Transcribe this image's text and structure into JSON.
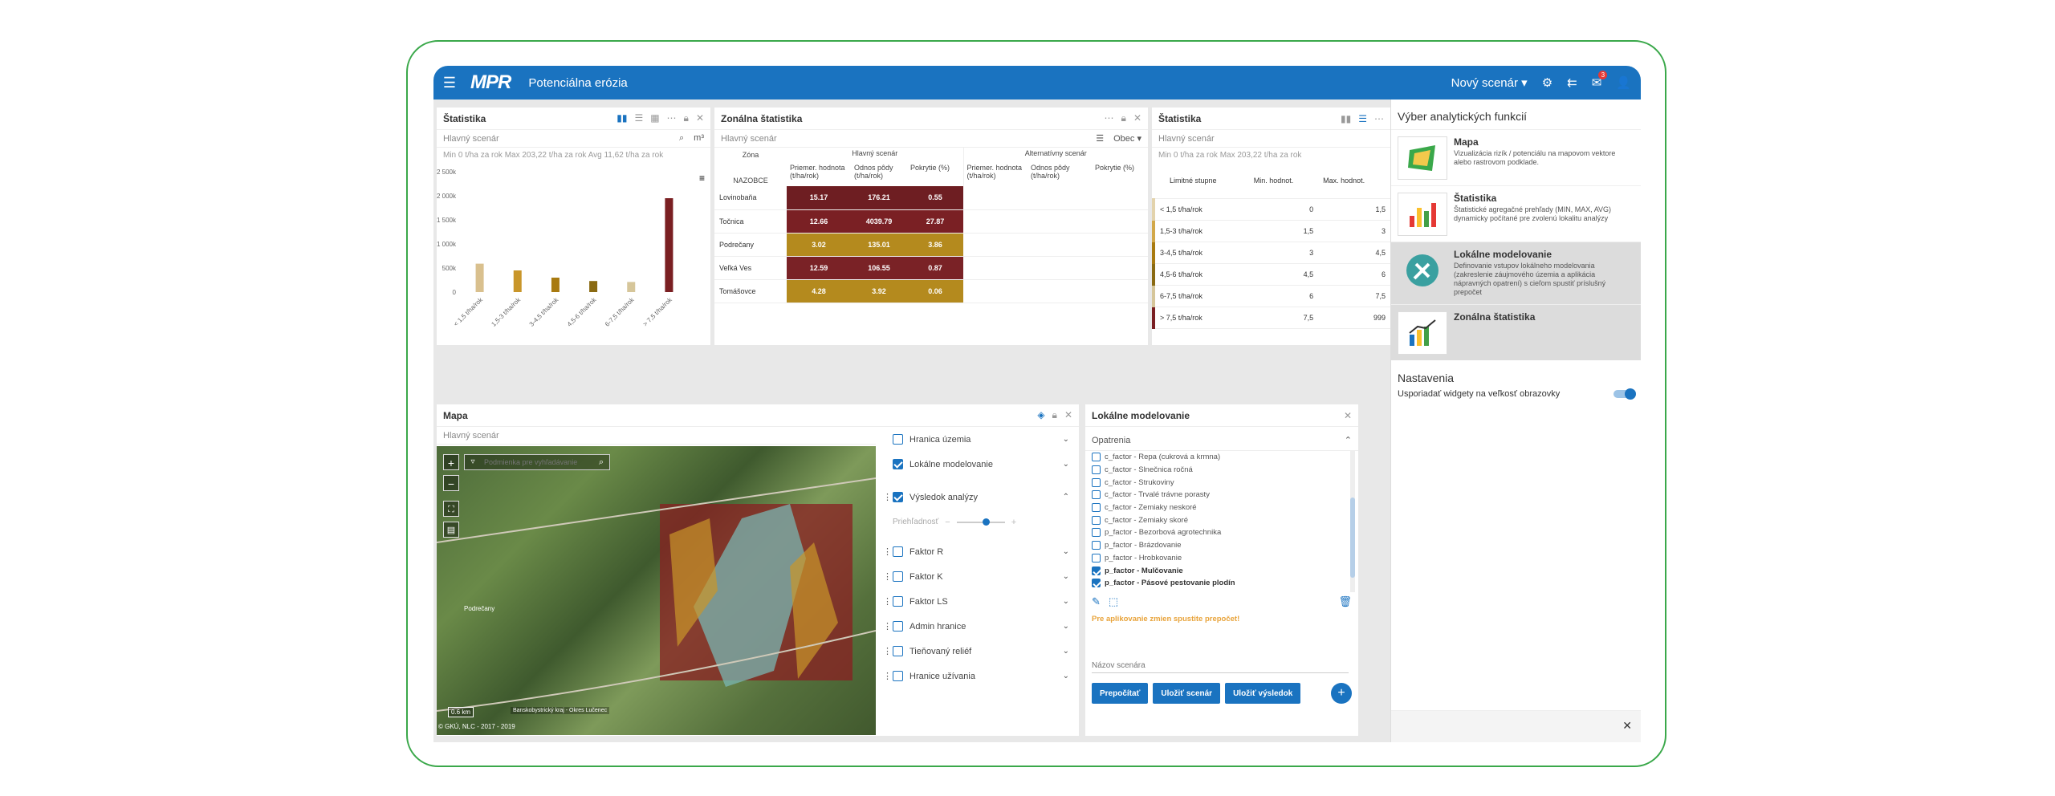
{
  "app": {
    "title": "Potenciálna erózia",
    "logo": "MPR",
    "scenario_menu": "Nový scenár",
    "notifications": "3"
  },
  "icons": {
    "burger": "menu-icon",
    "gear": "gear-icon",
    "exit": "exit-icon",
    "mail": "mail-icon",
    "user": "user-icon"
  },
  "stat": {
    "title": "Štatistika",
    "scenario": "Hlavný scenár",
    "unit": "m³",
    "minmax": "Min 0 t/ha za rok   Max 203,22 t/ha za rok   Avg 11,62 t/ha za rok"
  },
  "chart_data": {
    "type": "bar",
    "title": "Štatistika",
    "categories": [
      "< 1,5 t/ha/rok",
      "1,5-3 t/ha/rok",
      "3-4,5 t/ha/rok",
      "4,5-6 t/ha/rok",
      "6-7,5 t/ha/rok",
      "> 7,5 t/ha/rok"
    ],
    "values": [
      590000,
      450000,
      300000,
      230000,
      210000,
      1950000
    ],
    "colors": [
      "#d9c08e",
      "#c9962a",
      "#a87a10",
      "#8a6a12",
      "#d6c69a",
      "#7a1f22"
    ],
    "ylim": [
      0,
      2500000
    ],
    "yticks": [
      "0",
      "500k",
      "1 000k",
      "1 500k",
      "2 000k",
      "2 500k"
    ],
    "tick_values": [
      0,
      500000,
      1000000,
      1500000,
      2000000,
      2500000
    ]
  },
  "zonal": {
    "title": "Zonálna štatistika",
    "scenario": "Hlavný scenár",
    "obec": "Obec",
    "col_zona": "Zóna",
    "col_nazobce": "NAZOBCE",
    "main": "Hlavný scenár",
    "alt": "Alternatívny scenár",
    "h1": "Priemer. hodnota (t/ha/rok)",
    "h2": "Odnos pôdy (t/ha/rok)",
    "h3": "Pokrytie (%)",
    "rows": [
      {
        "name": "Lovinobaňa",
        "a": "15.17",
        "b": "176.21",
        "c": "0.55",
        "color": "#6e1e22"
      },
      {
        "name": "Točnica",
        "a": "12.66",
        "b": "4039.79",
        "c": "27.87",
        "color": "#7a2024"
      },
      {
        "name": "Podrečany",
        "a": "3.02",
        "b": "135.01",
        "c": "3.86",
        "color": "#b48a1e"
      },
      {
        "name": "Veľká Ves",
        "a": "12.59",
        "b": "106.55",
        "c": "0.87",
        "color": "#7a2226"
      },
      {
        "name": "Tomášovce",
        "a": "4.28",
        "b": "3.92",
        "c": "0.06",
        "color": "#b48a1e"
      }
    ]
  },
  "stat2": {
    "title": "Štatistika",
    "scenario": "Hlavný scenár",
    "minmax": "Min 0 t/ha za rok   Max 203,22 t/ha za rok",
    "h1": "Limitné stupne",
    "h2": "Min. hodnot.",
    "h3": "Max. hodnot.",
    "rows": [
      {
        "label": "< 1,5 t/ha/rok",
        "min": "0",
        "max": "1,5",
        "color": "#e3d3ac"
      },
      {
        "label": "1,5-3 t/ha/rok",
        "min": "1,5",
        "max": "3",
        "color": "#d2a84a"
      },
      {
        "label": "3-4,5 t/ha/rok",
        "min": "3",
        "max": "4,5",
        "color": "#a87a10"
      },
      {
        "label": "4,5-6 t/ha/rok",
        "min": "4,5",
        "max": "6",
        "color": "#8a6a12"
      },
      {
        "label": "6-7,5 t/ha/rok",
        "min": "6",
        "max": "7,5",
        "color": "#d6c69a"
      },
      {
        "label": "> 7,5 t/ha/rok",
        "min": "7,5",
        "max": "999",
        "color": "#7a1f22"
      }
    ]
  },
  "side": {
    "title": "Výber analytických funkcií",
    "settings": "Nastavenia",
    "resize": "Usporiadať widgety na veľkosť obrazovky",
    "funcs": [
      {
        "t": "Mapa",
        "d": "Vizualizácia rizík / potenciálu na mapovom vektore alebo rastrovom podklade."
      },
      {
        "t": "Štatistika",
        "d": "Štatistické agregačné prehľady (MIN, MAX, AVG) dynamicky počítané pre zvolenú lokalitu analýzy"
      },
      {
        "t": "Lokálne modelovanie",
        "d": "Definovanie vstupov lokálneho modelovania (zakreslenie záujmového územia a aplikácia nápravných opatrení) s cieľom spustiť príslušný prepočet"
      },
      {
        "t": "Zonálna štatistika",
        "d": ""
      }
    ]
  },
  "map": {
    "title": "Mapa",
    "scenario": "Hlavný scenár",
    "search": "Podmienka pre vyhľadávanie",
    "scale": "0.6 km",
    "attribution": "© GKÚ, NLC - 2017 - 2019",
    "region": "Banskobystrický kraj - Okres Lučenec",
    "town": "Podrečany",
    "transparency": "Priehľadnosť",
    "layers": [
      "Hranica územia",
      "Lokálne modelovanie",
      "Výsledok analýzy",
      "Faktor R",
      "Faktor K",
      "Faktor LS",
      "Admin hranice",
      "Tieňovaný reliéf",
      "Hranice užívania"
    ]
  },
  "lm": {
    "title": "Lokálne modelovanie",
    "section": "Opatrenia",
    "warning": "Pre aplikovanie zmien spustite prepočet!",
    "name_placeholder": "Názov scenára",
    "btn1": "Prepočítať",
    "btn2": "Uložiť scenár",
    "btn3": "Uložiť výsledok",
    "items": [
      "c_factor - Repa (cukrová a krmna)",
      "c_factor - Slnečnica ročná",
      "c_factor - Strukoviny",
      "c_factor - Trvalé trávne porasty",
      "c_factor - Zemiaky neskoré",
      "c_factor - Zemiaky skoré",
      "p_factor - Bezorbová agrotechnika",
      "p_factor - Brázdovanie",
      "p_factor - Hrobkovanie",
      "p_factor - Mulčovanie",
      "p_factor - Pásové pestovanie plodín"
    ]
  }
}
